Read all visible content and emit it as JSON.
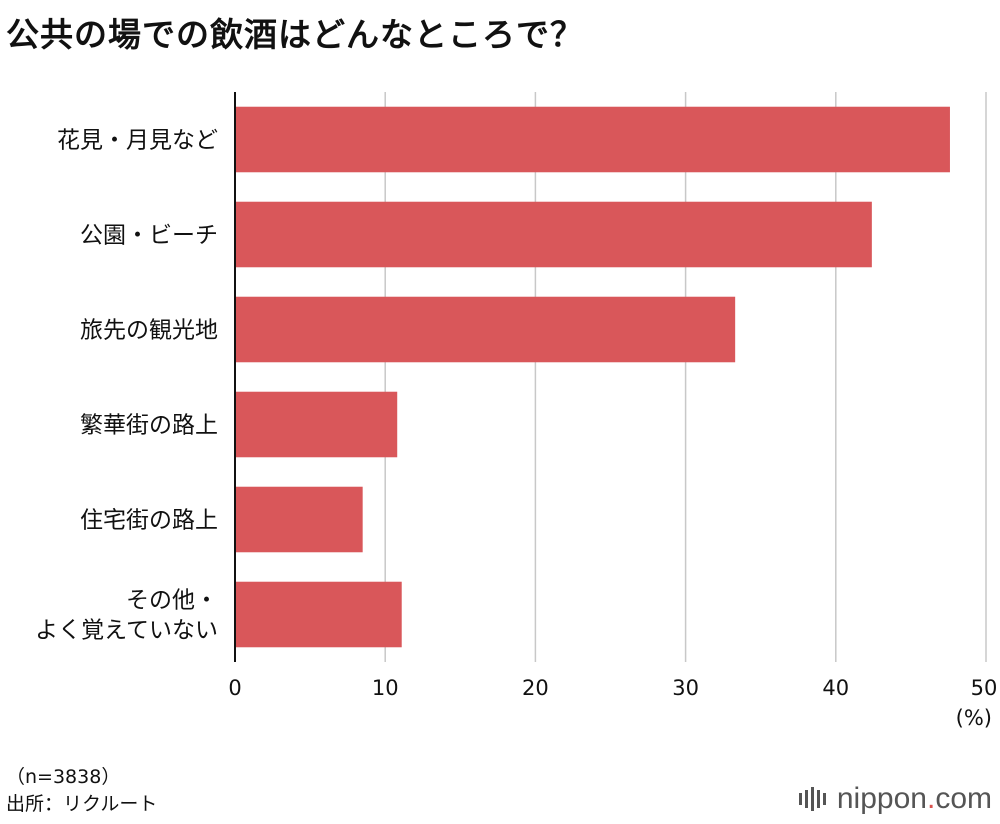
{
  "title": "公共の場での飲酒はどんなところで？",
  "chart_data": {
    "type": "bar",
    "orientation": "horizontal",
    "categories": [
      [
        "花見・月見など"
      ],
      [
        "公園・ビーチ"
      ],
      [
        "旅先の観光地"
      ],
      [
        "繁華街の路上"
      ],
      [
        "住宅街の路上"
      ],
      [
        "その他・",
        "よく覚えていない"
      ]
    ],
    "values": [
      47.6,
      42.4,
      33.3,
      10.8,
      8.5,
      11.1
    ],
    "xlim": [
      0,
      50
    ],
    "xticks": [
      "0",
      "10",
      "20",
      "30",
      "40",
      "50"
    ],
    "unit": "(%)",
    "grid": true,
    "bar_color": "#d9575a"
  },
  "footer": {
    "sample": "（n=3838）",
    "source": "出所：リクルート"
  },
  "brand": {
    "name": "nippon",
    "dot": ".",
    "suffix": "com"
  }
}
